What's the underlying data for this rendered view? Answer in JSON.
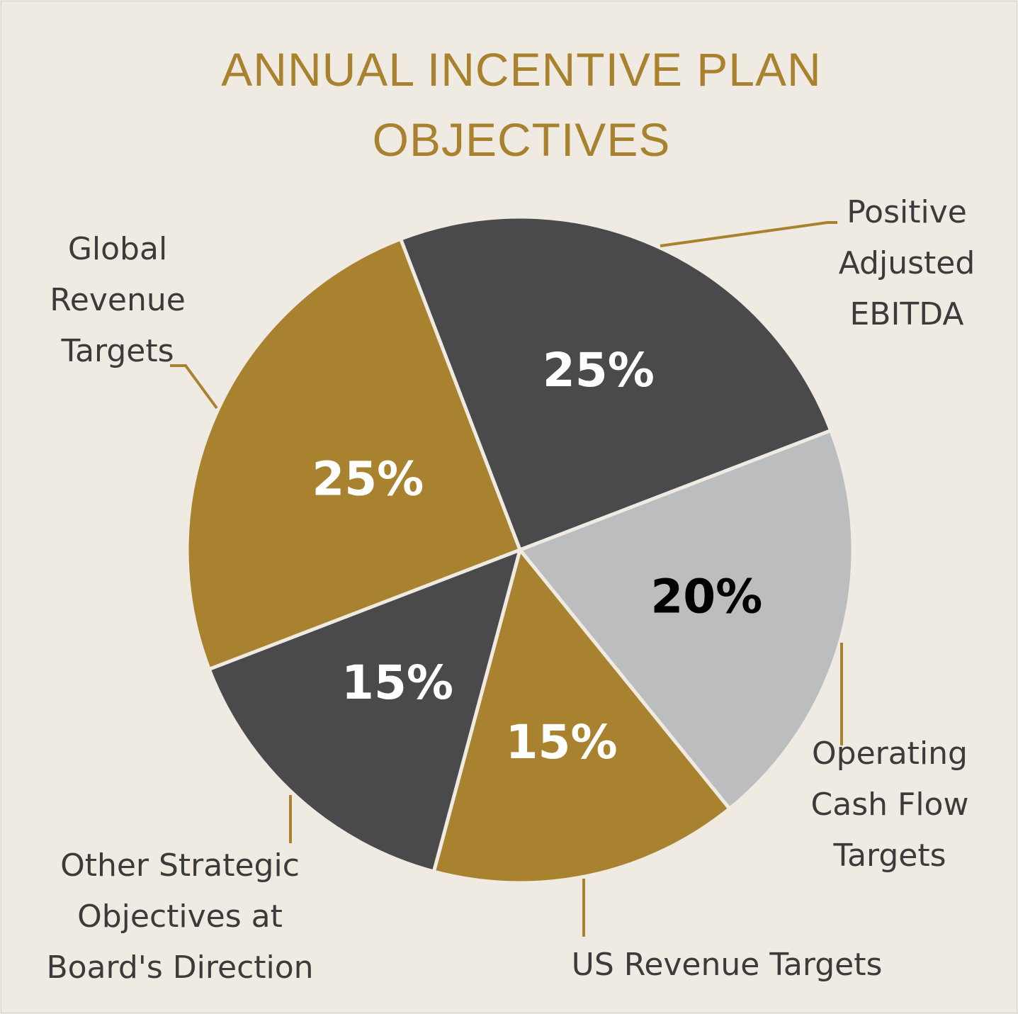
{
  "chart_data": {
    "type": "pie",
    "title": "ANNUAL INCENTIVE PLAN OBJECTIVES",
    "title_lines": [
      "ANNUAL INCENTIVE PLAN",
      "OBJECTIVES"
    ],
    "slices": [
      {
        "label": "Positive Adjusted EBITDA",
        "label_lines": [
          "Positive",
          "Adjusted",
          "EBITDA"
        ],
        "value": 25,
        "value_label": "25%",
        "color": "#4a4a4c",
        "text_color": "#ffffff"
      },
      {
        "label": "Operating Cash Flow Targets",
        "label_lines": [
          "Operating",
          "Cash Flow",
          "Targets"
        ],
        "value": 20,
        "value_label": "20%",
        "color": "#bcbdbf",
        "text_color": "#000000"
      },
      {
        "label": "US Revenue Targets",
        "label_lines": [
          "US Revenue Targets"
        ],
        "value": 15,
        "value_label": "15%",
        "color": "#a98230",
        "text_color": "#ffffff"
      },
      {
        "label": "Other Strategic Objectives at Board's Direction",
        "label_lines": [
          "Other Strategic",
          "Objectives at",
          "Board's Direction"
        ],
        "value": 15,
        "value_label": "15%",
        "color": "#4a4a4c",
        "text_color": "#ffffff"
      },
      {
        "label": "Global Revenue Targets",
        "label_lines": [
          "Global",
          "Revenue",
          "Targets"
        ],
        "value": 25,
        "value_label": "25%",
        "color": "#a98230",
        "text_color": "#ffffff"
      }
    ],
    "legend": "none",
    "label_style": "outside labels with leader lines, percentages inside slices"
  }
}
